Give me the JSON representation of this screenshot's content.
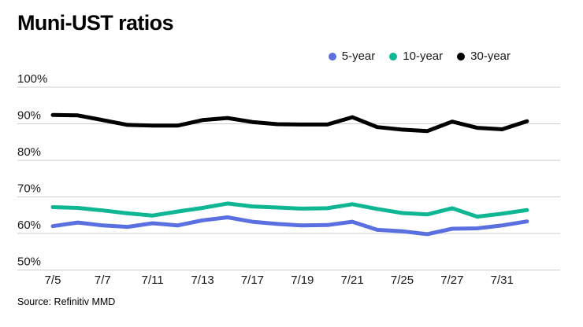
{
  "header": {
    "title": "Muni-UST ratios"
  },
  "legend": [
    {
      "label": "5-year",
      "color": "#5a6fe0"
    },
    {
      "label": "10-year",
      "color": "#0fb694"
    },
    {
      "label": "30-year",
      "color": "#000000"
    }
  ],
  "chart_data": {
    "type": "line",
    "title": "Muni-UST ratios",
    "x": [
      "7/5",
      "7/6",
      "7/7",
      "7/10",
      "7/11",
      "7/12",
      "7/13",
      "7/14",
      "7/17",
      "7/18",
      "7/19",
      "7/20",
      "7/21",
      "7/24",
      "7/25",
      "7/26",
      "7/27",
      "7/28",
      "7/31",
      "8/1"
    ],
    "x_tick_labels": [
      "7/5",
      "7/7",
      "7/11",
      "7/13",
      "7/17",
      "7/19",
      "7/21",
      "7/25",
      "7/27",
      "7/31"
    ],
    "series": [
      {
        "name": "5-year",
        "color": "#5a6fe0",
        "values": [
          62.0,
          63.0,
          62.2,
          61.8,
          62.8,
          62.2,
          63.6,
          64.4,
          63.2,
          62.6,
          62.2,
          62.3,
          63.2,
          61.0,
          60.6,
          59.8,
          61.3,
          61.4,
          62.2,
          63.3
        ]
      },
      {
        "name": "10-year",
        "color": "#0fb694",
        "values": [
          67.2,
          67.0,
          66.3,
          65.5,
          64.9,
          66.0,
          67.0,
          68.2,
          67.4,
          67.1,
          66.8,
          66.9,
          68.0,
          66.7,
          65.6,
          65.2,
          66.9,
          64.6,
          65.4,
          66.4
        ]
      },
      {
        "name": "30-year",
        "color": "#000000",
        "values": [
          92.4,
          92.3,
          91.0,
          89.7,
          89.5,
          89.5,
          91.0,
          91.6,
          90.5,
          89.9,
          89.8,
          89.8,
          91.8,
          89.1,
          88.4,
          88.0,
          90.6,
          88.9,
          88.5,
          90.7
        ]
      }
    ],
    "ylim": [
      50,
      100
    ],
    "yticks": [
      100,
      90,
      80,
      70,
      60,
      50
    ],
    "ytick_suffix": "%",
    "grid": true,
    "gridline_color": "#cccccc",
    "legend_position": "top-right"
  },
  "source": {
    "text": "Source: Refinitiv MMD"
  }
}
